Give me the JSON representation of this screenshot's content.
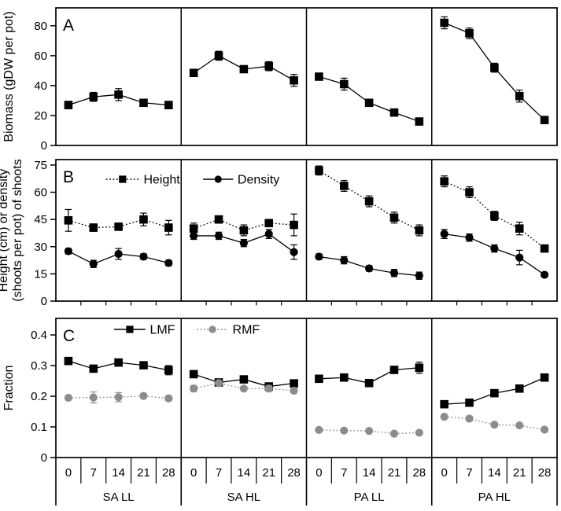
{
  "figure": {
    "background": "#ffffff",
    "ink_color": "#000000",
    "gray_color": "#8c8c8c"
  },
  "chart_data": {
    "type": "line",
    "x": [
      0,
      7,
      14,
      21,
      28
    ],
    "x_tick_labels": [
      "0",
      "7",
      "14",
      "21",
      "28"
    ],
    "group_labels": [
      "SA LL",
      "SA HL",
      "PA LL",
      "PA HL"
    ],
    "panels": [
      {
        "label": "A",
        "ylabel_lines": [
          "Biomass (gDW per pot)"
        ],
        "yticks": [
          0,
          20,
          40,
          60,
          80
        ],
        "ytick_labels": [
          "0",
          "20",
          "40",
          "60",
          "80"
        ],
        "ylim": [
          0,
          92
        ],
        "series": [
          {
            "name": "Biomass",
            "marker": "square",
            "color": "#000000",
            "line": "solid",
            "values": [
              [
                27,
                32.5,
                34,
                28.5,
                27
              ],
              [
                48.5,
                60,
                51,
                53,
                43.5
              ],
              [
                46,
                41,
                28.5,
                22,
                16
              ],
              [
                82,
                75,
                52,
                33,
                17
              ]
            ],
            "errors": [
              [
                2.5,
                3,
                4,
                1,
                2.5
              ],
              [
                1.5,
                3,
                2,
                3,
                4
              ],
              [
                1.5,
                4,
                1.5,
                2,
                2
              ],
              [
                4,
                3.5,
                3,
                4,
                1
              ]
            ]
          }
        ]
      },
      {
        "label": "B",
        "ylabel_lines": [
          "Height (cm) or density",
          "(shoots per pot) of shoots"
        ],
        "yticks": [
          0,
          15,
          30,
          45,
          60,
          75
        ],
        "ytick_labels": [
          "0",
          "15",
          "30",
          "45",
          "60",
          "75"
        ],
        "ylim": [
          0,
          78
        ],
        "series": [
          {
            "name": "Height",
            "marker": "square",
            "color": "#000000",
            "line": "dotted",
            "values": [
              [
                44.5,
                40.5,
                41,
                45,
                40.5
              ],
              [
                40,
                45,
                39,
                43,
                42
              ],
              [
                72,
                63.5,
                55,
                46,
                39
              ],
              [
                66,
                60,
                47,
                40,
                29
              ]
            ],
            "errors": [
              [
                6,
                2,
                2,
                3.5,
                4
              ],
              [
                3,
                2,
                3,
                2,
                6
              ],
              [
                2.5,
                3,
                3,
                3,
                3
              ],
              [
                3,
                3,
                2.5,
                3.5,
                1
              ]
            ]
          },
          {
            "name": "Density",
            "marker": "circle",
            "color": "#000000",
            "line": "solid",
            "values": [
              [
                27.5,
                20.5,
                26,
                24.5,
                21
              ],
              [
                36,
                36,
                32,
                37,
                27
              ],
              [
                24.5,
                22.5,
                18,
                15.5,
                14
              ],
              [
                37,
                35,
                29,
                24,
                14.5
              ]
            ],
            "errors": [
              [
                1.5,
                2,
                3,
                1.5,
                1.5
              ],
              [
                2,
                2,
                2,
                2.5,
                4
              ],
              [
                1.5,
                2,
                1.5,
                2,
                2
              ],
              [
                2.5,
                2,
                2,
                4,
                1
              ]
            ]
          }
        ]
      },
      {
        "label": "C",
        "ylabel_lines": [
          "Fraction"
        ],
        "yticks": [
          0,
          0.1,
          0.2,
          0.3,
          0.4
        ],
        "ytick_labels": [
          "0",
          "0.1",
          "0.2",
          "0.3",
          "0.4"
        ],
        "ylim": [
          0,
          0.454
        ],
        "series": [
          {
            "name": "LMF",
            "marker": "square",
            "color": "#000000",
            "line": "solid",
            "values": [
              [
                0.315,
                0.29,
                0.31,
                0.301,
                0.285
              ],
              [
                0.272,
                0.245,
                0.255,
                0.232,
                0.242
              ],
              [
                0.257,
                0.261,
                0.243,
                0.286,
                0.293
              ],
              [
                0.174,
                0.179,
                0.21,
                0.225,
                0.261
              ]
            ],
            "errors": [
              [
                0.008,
                0.004,
                0.006,
                0.005,
                0.015
              ],
              [
                0.01,
                0.005,
                0.005,
                0.008,
                0.006
              ],
              [
                0.004,
                0.005,
                0.004,
                0.01,
                0.018
              ],
              [
                0.004,
                0.004,
                0.005,
                0.005,
                0.005
              ]
            ]
          },
          {
            "name": "RMF",
            "marker": "circle",
            "color": "#8c8c8c",
            "line": "dotted",
            "values": [
              [
                0.195,
                0.196,
                0.197,
                0.201,
                0.193
              ],
              [
                0.225,
                0.243,
                0.225,
                0.225,
                0.218
              ],
              [
                0.09,
                0.088,
                0.087,
                0.078,
                0.081
              ],
              [
                0.133,
                0.127,
                0.107,
                0.105,
                0.091
              ]
            ],
            "errors": [
              [
                0.005,
                0.018,
                0.015,
                0.008,
                0.008
              ],
              [
                0.01,
                0.006,
                0.006,
                0.01,
                0.007
              ],
              [
                0.003,
                0.003,
                0.003,
                0.003,
                0.003
              ],
              [
                0.003,
                0.008,
                0.004,
                0.004,
                0.003
              ]
            ]
          }
        ]
      }
    ]
  }
}
